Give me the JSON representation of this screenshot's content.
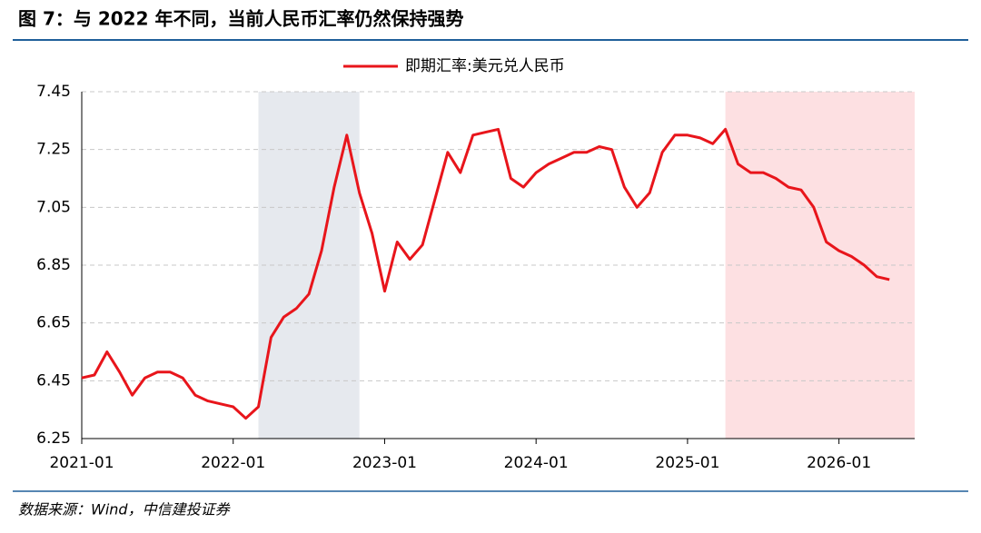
{
  "chart_data": {
    "type": "line",
    "title": "图 7：与 2022 年不同，当前人民币汇率仍然保持强势",
    "source": "数据来源：Wind，中信建投证券",
    "x": [
      "2021-01",
      "2021-02",
      "2021-03",
      "2021-04",
      "2021-05",
      "2021-06",
      "2021-07",
      "2021-08",
      "2021-09",
      "2021-10",
      "2021-11",
      "2021-12",
      "2022-01",
      "2022-02",
      "2022-03",
      "2022-04",
      "2022-05",
      "2022-06",
      "2022-07",
      "2022-08",
      "2022-09",
      "2022-10",
      "2022-11",
      "2022-12",
      "2023-01",
      "2023-02",
      "2023-03",
      "2023-04",
      "2023-05",
      "2023-06",
      "2023-07",
      "2023-08",
      "2023-09",
      "2023-10",
      "2023-11",
      "2023-12",
      "2024-01",
      "2024-02",
      "2024-03",
      "2024-04",
      "2024-05",
      "2024-06",
      "2024-07",
      "2024-08",
      "2024-09",
      "2024-10",
      "2024-11",
      "2024-12",
      "2025-01",
      "2025-02",
      "2025-03",
      "2025-04",
      "2025-05",
      "2025-06",
      "2025-07",
      "2025-08",
      "2025-09",
      "2025-10",
      "2025-11",
      "2025-12",
      "2026-01",
      "2026-02",
      "2026-03",
      "2026-04",
      "2026-05"
    ],
    "series": [
      {
        "name": "即期汇率:美元兑人民币",
        "color": "#e8151b",
        "values": [
          6.46,
          6.47,
          6.55,
          6.48,
          6.4,
          6.46,
          6.48,
          6.48,
          6.46,
          6.4,
          6.38,
          6.37,
          6.36,
          6.32,
          6.36,
          6.6,
          6.67,
          6.7,
          6.75,
          6.9,
          7.12,
          7.3,
          7.1,
          6.96,
          6.76,
          6.93,
          6.87,
          6.92,
          7.08,
          7.24,
          7.17,
          7.3,
          7.31,
          7.32,
          7.15,
          7.12,
          7.17,
          7.2,
          7.22,
          7.24,
          7.24,
          7.26,
          7.25,
          7.12,
          7.05,
          7.1,
          7.24,
          7.3,
          7.3,
          7.29,
          7.27,
          7.32,
          7.2,
          7.17,
          7.17,
          7.15,
          7.12,
          7.11,
          7.05,
          6.93,
          6.9,
          6.88,
          6.85,
          6.81,
          6.8
        ]
      }
    ],
    "shaded_regions": [
      {
        "start": "2022-03",
        "end": "2022-11",
        "color": "#e6e9ee"
      },
      {
        "start": "2025-04",
        "end": "2026-07",
        "color": "#fde0e2"
      }
    ],
    "xlim": [
      "2021-01",
      "2026-07"
    ],
    "xticks": [
      "2021-01",
      "2022-01",
      "2023-01",
      "2024-01",
      "2025-01",
      "2026-01"
    ],
    "ylim": [
      6.25,
      7.45
    ],
    "yticks": [
      6.25,
      6.45,
      6.65,
      6.85,
      7.05,
      7.25,
      7.45
    ],
    "grid": true,
    "legend": "top"
  }
}
